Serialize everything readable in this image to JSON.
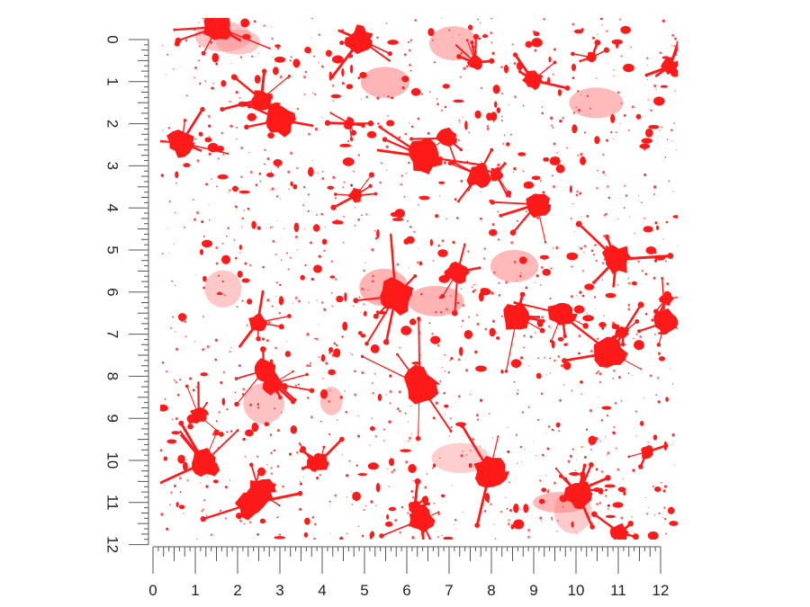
{
  "rulers": {
    "left": {
      "labels": [
        "0",
        "1",
        "2",
        "3",
        "4",
        "5",
        "6",
        "7",
        "8",
        "9",
        "10",
        "11",
        "12"
      ]
    },
    "bottom": {
      "labels": [
        "0",
        "1",
        "2",
        "3",
        "4",
        "5",
        "6",
        "7",
        "8",
        "9",
        "10",
        "11",
        "12"
      ]
    },
    "subdivisions": 8
  },
  "pattern": {
    "name": "red-paint-splatter",
    "colors": {
      "splatter": "#ff1a1a",
      "light": "#ff8080",
      "background": "#ffffff"
    }
  }
}
